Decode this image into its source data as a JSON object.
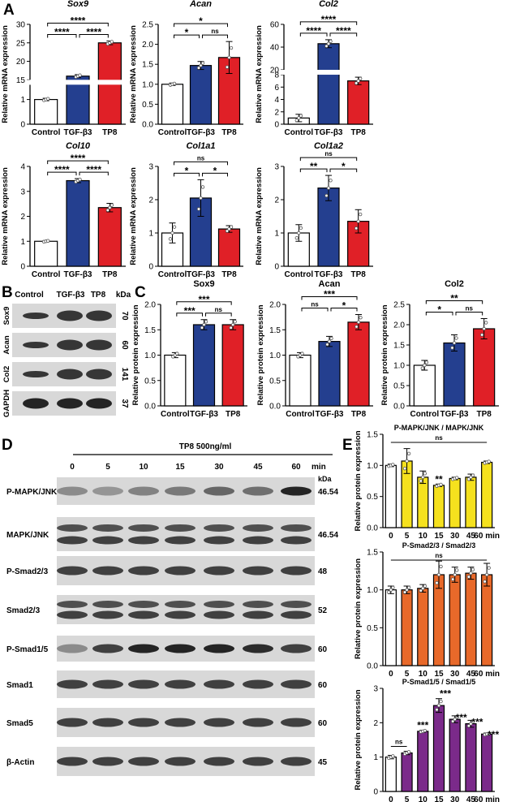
{
  "colors": {
    "control": "#ffffff",
    "tgf": "#243f8f",
    "tp8": "#e02027",
    "yellow": "#f5e11e",
    "orange": "#e8692a",
    "purple": "#7b2a8a",
    "blot_bg": "#d8d8d8",
    "band": "#1a1a1a"
  },
  "panel_letters": [
    "A",
    "B",
    "C",
    "D",
    "E"
  ],
  "groups": [
    "Control",
    "TGF-β3",
    "TP8"
  ],
  "chart_data": [
    {
      "type": "bar",
      "panel": "A",
      "title": "Sox9",
      "ylabel": "Relative mRNA expression",
      "categories": [
        "Control",
        "TGF-β3",
        "TP8"
      ],
      "values": [
        1.0,
        16.0,
        25.0
      ],
      "errors": [
        0.05,
        0.4,
        0.5
      ],
      "axis_break": true,
      "ylim_lower": [
        0,
        1.6
      ],
      "ylim_upper": [
        15,
        30
      ],
      "yticks_lower": [
        0,
        1
      ],
      "yticks_upper": [
        15,
        20,
        25,
        30
      ],
      "significance": [
        {
          "pair": [
            0,
            1
          ],
          "label": "****"
        },
        {
          "pair": [
            1,
            2
          ],
          "label": "****"
        },
        {
          "pair": [
            0,
            2
          ],
          "label": "****"
        }
      ]
    },
    {
      "type": "bar",
      "panel": "A",
      "title": "Acan",
      "ylabel": "Relative mRNA expression",
      "categories": [
        "Control",
        "TGF-β3",
        "TP8"
      ],
      "values": [
        1.0,
        1.47,
        1.67
      ],
      "errors": [
        0.03,
        0.1,
        0.4
      ],
      "ylim": [
        0,
        2.5
      ],
      "yticks": [
        0.0,
        0.5,
        1.0,
        1.5,
        2.0,
        2.5
      ],
      "significance": [
        {
          "pair": [
            0,
            1
          ],
          "label": "*"
        },
        {
          "pair": [
            1,
            2
          ],
          "label": "ns"
        },
        {
          "pair": [
            0,
            2
          ],
          "label": "*"
        }
      ]
    },
    {
      "type": "bar",
      "panel": "A",
      "title": "Col2",
      "ylabel": "Relative mRNA expression",
      "categories": [
        "Control",
        "TGF-β3",
        "TP8"
      ],
      "values": [
        1.0,
        43.0,
        7.0
      ],
      "errors": [
        0.6,
        3.5,
        0.6
      ],
      "axis_break": true,
      "ylim_lower": [
        0,
        8
      ],
      "ylim_upper": [
        20,
        60
      ],
      "yticks_lower": [
        0,
        2,
        4,
        6,
        8
      ],
      "yticks_upper": [
        20,
        40,
        60
      ],
      "significance": [
        {
          "pair": [
            0,
            1
          ],
          "label": "****"
        },
        {
          "pair": [
            1,
            2
          ],
          "label": "****"
        },
        {
          "pair": [
            0,
            2
          ],
          "label": "****"
        }
      ]
    },
    {
      "type": "bar",
      "panel": "A",
      "title": "Col10",
      "ylabel": "Relative mRNA expression",
      "categories": [
        "Control",
        "TGF-β3",
        "TP8"
      ],
      "values": [
        1.0,
        3.43,
        2.35
      ],
      "errors": [
        0.03,
        0.08,
        0.17
      ],
      "ylim": [
        0,
        4
      ],
      "yticks": [
        0,
        1,
        2,
        3,
        4
      ],
      "significance": [
        {
          "pair": [
            0,
            1
          ],
          "label": "****"
        },
        {
          "pair": [
            1,
            2
          ],
          "label": "****"
        },
        {
          "pair": [
            0,
            2
          ],
          "label": "****"
        }
      ]
    },
    {
      "type": "bar",
      "panel": "A",
      "title": "Col1a1",
      "ylabel": "Relative mRNA expression",
      "categories": [
        "Control",
        "TGF-β3",
        "TP8"
      ],
      "values": [
        1.0,
        2.05,
        1.12
      ],
      "errors": [
        0.3,
        0.55,
        0.1
      ],
      "ylim": [
        0,
        3
      ],
      "yticks": [
        0,
        1,
        2,
        3
      ],
      "significance": [
        {
          "pair": [
            0,
            1
          ],
          "label": "*"
        },
        {
          "pair": [
            1,
            2
          ],
          "label": "*"
        },
        {
          "pair": [
            0,
            2
          ],
          "label": "ns"
        }
      ]
    },
    {
      "type": "bar",
      "panel": "A",
      "title": "Col1a2",
      "ylabel": "Relative mRNA expression",
      "categories": [
        "Control",
        "TGF-β3",
        "TP8"
      ],
      "values": [
        1.0,
        2.35,
        1.35
      ],
      "errors": [
        0.25,
        0.38,
        0.35
      ],
      "ylim": [
        0,
        3
      ],
      "yticks": [
        0,
        1,
        2,
        3
      ],
      "significance": [
        {
          "pair": [
            0,
            1
          ],
          "label": "**"
        },
        {
          "pair": [
            1,
            2
          ],
          "label": "*"
        },
        {
          "pair": [
            0,
            2
          ],
          "label": "ns"
        }
      ]
    },
    {
      "type": "bar",
      "panel": "C",
      "title": "Sox9",
      "ylabel": "Relative protein expression",
      "categories": [
        "Control",
        "TGF-β3",
        "TP8"
      ],
      "values": [
        1.0,
        1.6,
        1.6
      ],
      "errors": [
        0.05,
        0.1,
        0.1
      ],
      "ylim": [
        0,
        2.0
      ],
      "yticks": [
        0.0,
        0.5,
        1.0,
        1.5,
        2.0
      ],
      "significance": [
        {
          "pair": [
            0,
            1
          ],
          "label": "***"
        },
        {
          "pair": [
            1,
            2
          ],
          "label": "ns"
        },
        {
          "pair": [
            0,
            2
          ],
          "label": "***"
        }
      ]
    },
    {
      "type": "bar",
      "panel": "C",
      "title": "Acan",
      "ylabel": "Relative protein expression",
      "categories": [
        "Control",
        "TGF-β3",
        "TP8"
      ],
      "values": [
        1.0,
        1.27,
        1.65
      ],
      "errors": [
        0.05,
        0.1,
        0.15
      ],
      "ylim": [
        0,
        2.0
      ],
      "yticks": [
        0.0,
        0.5,
        1.0,
        1.5,
        2.0
      ],
      "significance": [
        {
          "pair": [
            0,
            1
          ],
          "label": "ns"
        },
        {
          "pair": [
            1,
            2
          ],
          "label": "*"
        },
        {
          "pair": [
            0,
            2
          ],
          "label": "***"
        }
      ]
    },
    {
      "type": "bar",
      "panel": "C",
      "title": "Col2",
      "ylabel": "Relative protein expression",
      "categories": [
        "Control",
        "TGF-β3",
        "TP8"
      ],
      "values": [
        1.0,
        1.55,
        1.9
      ],
      "errors": [
        0.12,
        0.2,
        0.25
      ],
      "ylim": [
        0,
        2.5
      ],
      "yticks": [
        0.0,
        0.5,
        1.0,
        1.5,
        2.0,
        2.5
      ],
      "significance": [
        {
          "pair": [
            0,
            1
          ],
          "label": "*"
        },
        {
          "pair": [
            1,
            2
          ],
          "label": "ns"
        },
        {
          "pair": [
            0,
            2
          ],
          "label": "**"
        }
      ]
    },
    {
      "type": "bar",
      "panel": "E",
      "title": "P-MAPK/JNK / MAPK/JNK",
      "ylabel": "Relative protein expression",
      "categories": [
        "0",
        "5",
        "10",
        "15",
        "30",
        "45",
        "60 min"
      ],
      "values": [
        1.0,
        1.07,
        0.81,
        0.68,
        0.79,
        0.81,
        1.05
      ],
      "errors": [
        0.02,
        0.2,
        0.1,
        0.02,
        0.02,
        0.05,
        0.02
      ],
      "ylim": [
        0,
        1.5
      ],
      "yticks": [
        0.0,
        0.5,
        1.0,
        1.5
      ],
      "significance_bracket": "ns",
      "annotations": [
        {
          "index": 3,
          "label": "**"
        }
      ]
    },
    {
      "type": "bar",
      "panel": "E",
      "title": "P-Smad2/3 / Smad2/3",
      "ylabel": "Relative protein expression",
      "categories": [
        "0",
        "5",
        "10",
        "15",
        "30",
        "45",
        "60 min"
      ],
      "values": [
        1.0,
        1.0,
        1.02,
        1.2,
        1.2,
        1.22,
        1.2
      ],
      "errors": [
        0.05,
        0.05,
        0.05,
        0.18,
        0.1,
        0.08,
        0.15
      ],
      "ylim": [
        0,
        1.5
      ],
      "yticks": [
        0.0,
        0.5,
        1.0,
        1.5
      ],
      "significance_bracket": "ns"
    },
    {
      "type": "bar",
      "panel": "E",
      "title": "P-Smad1/5 / Smad1/5",
      "ylabel": "Relative protein expression",
      "categories": [
        "0",
        "5",
        "10",
        "15",
        "30",
        "45",
        "60 min"
      ],
      "values": [
        1.0,
        1.12,
        1.75,
        2.5,
        2.1,
        1.97,
        1.67
      ],
      "errors": [
        0.05,
        0.05,
        0.03,
        0.2,
        0.1,
        0.1,
        0.03
      ],
      "ylim": [
        0,
        3
      ],
      "yticks": [
        0,
        1,
        2,
        3
      ],
      "annotations": [
        {
          "index": 2,
          "label": "***"
        },
        {
          "index": 3,
          "label": "***"
        },
        {
          "index": 4,
          "label": "***"
        },
        {
          "index": 5,
          "label": "***"
        },
        {
          "index": 6,
          "label": "***"
        }
      ],
      "pair_bracket": {
        "pair": [
          0,
          1
        ],
        "label": "ns"
      }
    }
  ],
  "blot_B": {
    "header": [
      "Control",
      "TGF-β3",
      "TP8",
      "kDa"
    ],
    "rows": [
      {
        "label": "Sox9",
        "kda": "70"
      },
      {
        "label": "Acan",
        "kda": "60"
      },
      {
        "label": "Col2",
        "kda": "141"
      },
      {
        "label": "GAPDH",
        "kda": "37"
      }
    ]
  },
  "blot_D": {
    "treatment": "TP8 500ng/ml",
    "times": [
      "0",
      "5",
      "10",
      "15",
      "30",
      "45",
      "60"
    ],
    "time_unit": "min",
    "kda_header": "kDa",
    "rows": [
      {
        "label": "P-MAPK/JNK",
        "kda": "46.54"
      },
      {
        "label": "MAPK/JNK",
        "kda": "46.54"
      },
      {
        "label": "P-Smad2/3",
        "kda": "48"
      },
      {
        "label": "Smad2/3",
        "kda": "52"
      },
      {
        "label": "P-Smad1/5",
        "kda": "60"
      },
      {
        "label": "Smad1",
        "kda": "60"
      },
      {
        "label": "Smad5",
        "kda": "60"
      },
      {
        "label": "β-Actin",
        "kda": "45"
      }
    ]
  }
}
